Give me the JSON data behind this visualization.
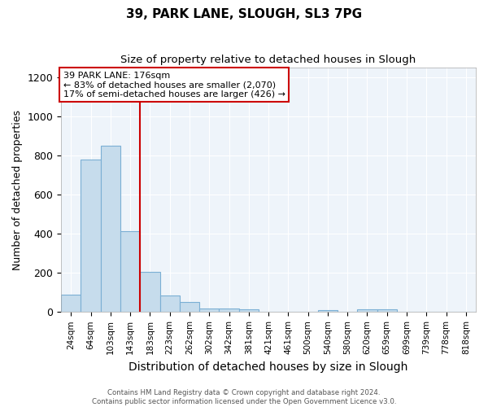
{
  "title": "39, PARK LANE, SLOUGH, SL3 7PG",
  "subtitle": "Size of property relative to detached houses in Slough",
  "xlabel": "Distribution of detached houses by size in Slough",
  "ylabel": "Number of detached properties",
  "annotation_line1": "39 PARK LANE: 176sqm",
  "annotation_line2": "← 83% of detached houses are smaller (2,070)",
  "annotation_line3": "17% of semi-detached houses are larger (426) →",
  "red_line_x": 4.0,
  "categories": [
    "24sqm",
    "64sqm",
    "103sqm",
    "143sqm",
    "183sqm",
    "223sqm",
    "262sqm",
    "302sqm",
    "342sqm",
    "381sqm",
    "421sqm",
    "461sqm",
    "500sqm",
    "540sqm",
    "580sqm",
    "620sqm",
    "659sqm",
    "699sqm",
    "739sqm",
    "778sqm",
    "818sqm"
  ],
  "values": [
    90,
    780,
    850,
    415,
    205,
    85,
    52,
    20,
    18,
    15,
    3,
    3,
    0,
    10,
    0,
    12,
    15,
    0,
    0,
    0,
    0
  ],
  "bar_color": "#c6dcec",
  "bar_edge_color": "#7bafd4",
  "red_line_color": "#cc0000",
  "annotation_box_color": "#ffffff",
  "annotation_box_edge": "#cc0000",
  "background_color": "#ffffff",
  "plot_bg_color": "#eef4fa",
  "grid_color": "#ffffff",
  "footer": "Contains HM Land Registry data © Crown copyright and database right 2024.\nContains public sector information licensed under the Open Government Licence v3.0.",
  "ylim": [
    0,
    1250
  ],
  "yticks": [
    0,
    200,
    400,
    600,
    800,
    1000,
    1200
  ]
}
